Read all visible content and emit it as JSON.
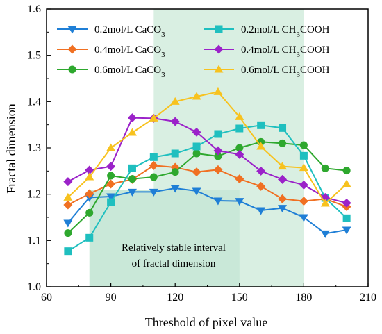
{
  "chart_data": {
    "type": "line",
    "xlabel": "Threshold of pixel value",
    "ylabel": "Fractal dimension",
    "xlim": [
      60,
      210
    ],
    "ylim": [
      1.0,
      1.6
    ],
    "xticks": [
      "60",
      "90",
      "120",
      "150",
      "180",
      "210"
    ],
    "yticks": [
      "1.0",
      "1.1",
      "1.2",
      "1.3",
      "1.4",
      "1.5",
      "1.6"
    ],
    "grid": false,
    "legend_position": "top",
    "shaded_band": {
      "x": [
        110,
        180
      ],
      "color": "#d9efe2"
    },
    "stable_region": {
      "label": [
        "Relatively stable interval",
        "of fractal dimension"
      ],
      "x": [
        80,
        150
      ],
      "color": "#c9e8d8"
    },
    "x": [
      70,
      80,
      90,
      100,
      110,
      120,
      130,
      140,
      150,
      160,
      170,
      180,
      190,
      200
    ],
    "series": [
      {
        "name": "0.2mol/L CaCO",
        "sub": "3",
        "marker": "triangle-down",
        "color": "#1f7fd6",
        "values": [
          1.138,
          1.193,
          1.195,
          1.205,
          1.205,
          1.213,
          1.207,
          1.186,
          1.185,
          1.165,
          1.17,
          1.15,
          1.115,
          1.123
        ]
      },
      {
        "name": "0.4mol/L CaCO",
        "sub": "3",
        "marker": "diamond",
        "color": "#f07022",
        "values": [
          1.177,
          1.201,
          1.222,
          1.232,
          1.262,
          1.258,
          1.248,
          1.253,
          1.233,
          1.217,
          1.19,
          1.185,
          1.19,
          1.173
        ]
      },
      {
        "name": "0.6mol/L CaCO",
        "sub": "3",
        "marker": "circle",
        "color": "#2ea82e",
        "values": [
          1.116,
          1.16,
          1.24,
          1.233,
          1.237,
          1.248,
          1.288,
          1.282,
          1.3,
          1.313,
          1.31,
          1.306,
          1.256,
          1.251
        ]
      },
      {
        "name": "0.2mol/L CH",
        "sub": "3",
        "suffix": "COOH",
        "marker": "square",
        "color": "#1fbfbf",
        "values": [
          1.077,
          1.106,
          1.183,
          1.256,
          1.28,
          1.288,
          1.303,
          1.33,
          1.342,
          1.349,
          1.343,
          1.283,
          1.192,
          1.148
        ]
      },
      {
        "name": "0.4mol/L CH",
        "sub": "3",
        "suffix": "COOH",
        "marker": "diamond",
        "color": "#9b22c9",
        "values": [
          1.227,
          1.252,
          1.26,
          1.365,
          1.364,
          1.357,
          1.334,
          1.294,
          1.286,
          1.25,
          1.232,
          1.22,
          1.193,
          1.181
        ]
      },
      {
        "name": "0.6mol/L CH",
        "sub": "3",
        "suffix": "COOH",
        "marker": "triangle-up",
        "color": "#f7c21e",
        "values": [
          1.193,
          1.237,
          1.3,
          1.333,
          1.364,
          1.4,
          1.411,
          1.421,
          1.367,
          1.303,
          1.26,
          1.257,
          1.18,
          1.222
        ]
      }
    ]
  }
}
